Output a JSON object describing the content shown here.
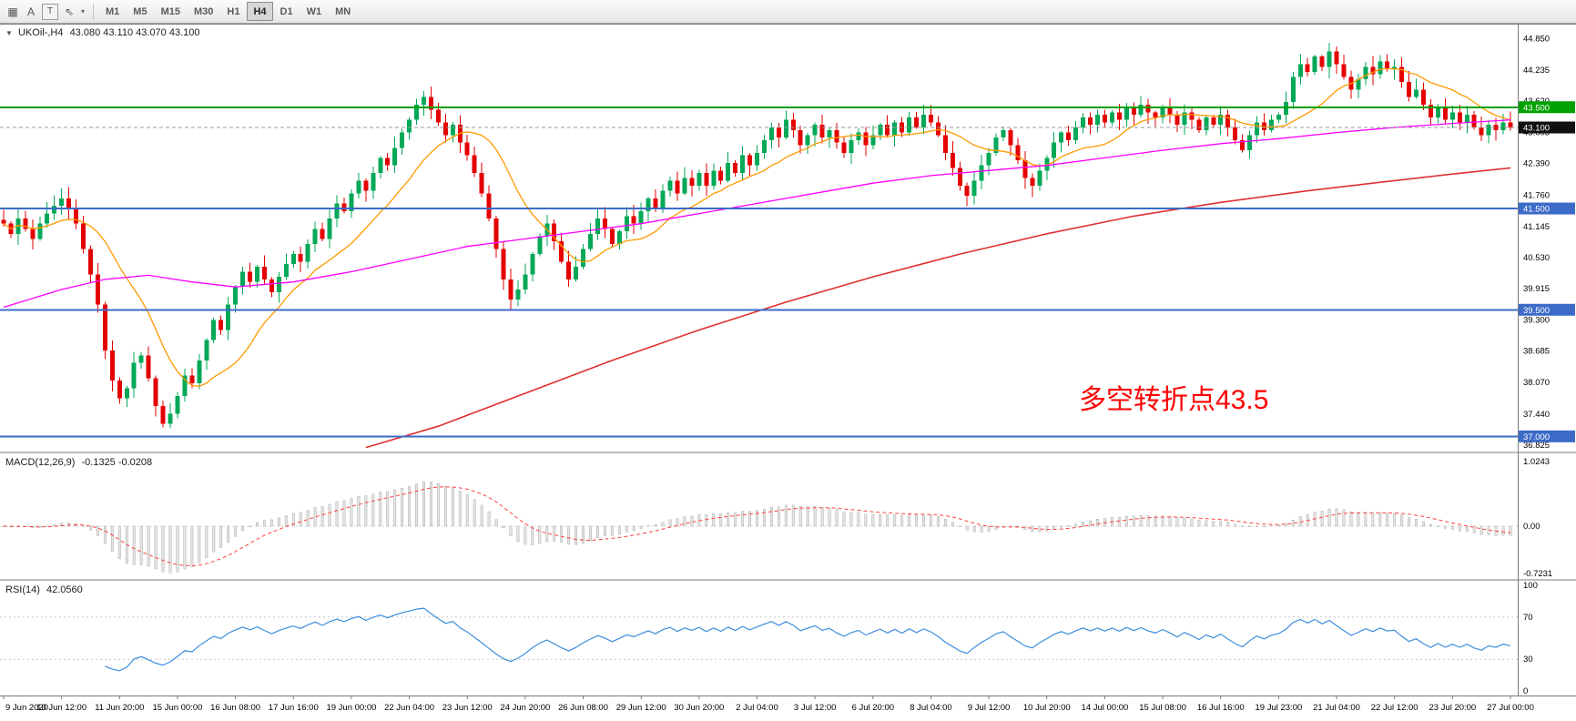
{
  "toolbar": {
    "icons": [
      {
        "name": "tile-windows-icon",
        "glyph": "▦",
        "boxed": false
      },
      {
        "name": "text-a-tool-icon",
        "glyph": "A",
        "boxed": false
      },
      {
        "name": "text-box-tool-icon",
        "glyph": "T",
        "boxed": true
      },
      {
        "name": "cursor-tool-icon",
        "glyph": "⇖",
        "boxed": false
      },
      {
        "name": "dropdown-chevron-icon",
        "glyph": "▾",
        "boxed": false,
        "small": true
      }
    ],
    "timeframes": [
      {
        "label": "M1",
        "active": false
      },
      {
        "label": "M5",
        "active": false
      },
      {
        "label": "M15",
        "active": false
      },
      {
        "label": "M30",
        "active": false
      },
      {
        "label": "H1",
        "active": false
      },
      {
        "label": "H4",
        "active": true
      },
      {
        "label": "D1",
        "active": false
      },
      {
        "label": "W1",
        "active": false
      },
      {
        "label": "MN",
        "active": false
      }
    ]
  },
  "header": {
    "collapse_icon": "▼",
    "symbol_period": "UKOil-,H4",
    "ohlc": "43.080 43.110 43.070 43.100"
  },
  "macd_panel": {
    "title": "MACD(12,26,9)",
    "values": "-0.1325 -0.0208"
  },
  "rsi_panel": {
    "title": "RSI(14)",
    "value": "42.0560"
  },
  "chart_data": {
    "type": "candlestick",
    "symbol": "UKOil-",
    "timeframe": "H4",
    "last_ohlc": {
      "open": 43.08,
      "high": 43.11,
      "low": 43.07,
      "close": 43.1
    },
    "price_range": [
      36.7,
      45.15
    ],
    "candle_up_color": "#00A857",
    "candle_down_color": "#E50000",
    "closes": [
      41.2,
      41.0,
      41.3,
      41.1,
      40.9,
      41.2,
      41.4,
      41.55,
      41.7,
      41.5,
      41.2,
      40.7,
      40.2,
      39.6,
      38.7,
      38.1,
      37.75,
      37.95,
      38.45,
      38.6,
      38.15,
      37.6,
      37.25,
      37.45,
      37.8,
      38.2,
      38.05,
      38.5,
      38.9,
      39.3,
      39.1,
      39.6,
      39.95,
      40.25,
      40.05,
      40.35,
      40.1,
      39.85,
      40.15,
      40.4,
      40.6,
      40.45,
      40.8,
      41.1,
      40.9,
      41.3,
      41.6,
      41.45,
      41.8,
      42.05,
      41.85,
      42.2,
      42.5,
      42.35,
      42.7,
      43.0,
      43.25,
      43.55,
      43.7,
      43.45,
      43.2,
      42.95,
      43.15,
      42.8,
      42.55,
      42.2,
      41.8,
      41.3,
      40.7,
      40.1,
      39.7,
      39.9,
      40.2,
      40.6,
      40.95,
      41.2,
      40.85,
      40.45,
      40.1,
      40.35,
      40.7,
      41.0,
      41.3,
      41.1,
      40.8,
      41.05,
      41.35,
      41.2,
      41.45,
      41.7,
      41.5,
      41.85,
      42.05,
      41.8,
      42.1,
      41.95,
      42.2,
      41.95,
      42.25,
      42.05,
      42.4,
      42.2,
      42.55,
      42.35,
      42.6,
      42.85,
      43.1,
      42.9,
      43.25,
      43.05,
      42.75,
      42.95,
      43.15,
      42.9,
      43.05,
      42.8,
      42.6,
      42.85,
      43.0,
      42.75,
      42.95,
      43.15,
      42.95,
      43.2,
      43.0,
      43.3,
      43.1,
      43.35,
      43.2,
      42.95,
      42.6,
      42.3,
      41.95,
      41.75,
      42.05,
      42.35,
      42.6,
      42.9,
      43.05,
      42.75,
      42.45,
      42.1,
      41.95,
      42.25,
      42.5,
      42.8,
      43.0,
      42.85,
      43.1,
      43.3,
      43.15,
      43.35,
      43.2,
      43.4,
      43.25,
      43.5,
      43.35,
      43.55,
      43.4,
      43.3,
      43.5,
      43.35,
      43.15,
      43.4,
      43.25,
      43.05,
      43.3,
      43.15,
      43.35,
      43.1,
      42.85,
      42.65,
      42.95,
      43.2,
      43.05,
      43.25,
      43.35,
      43.6,
      44.1,
      44.35,
      44.2,
      44.5,
      44.3,
      44.6,
      44.35,
      44.1,
      43.85,
      44.05,
      44.3,
      44.15,
      44.4,
      44.25,
      44.3,
      44.0,
      43.7,
      43.85,
      43.55,
      43.3,
      43.5,
      43.25,
      43.4,
      43.2,
      43.35,
      43.1,
      42.95,
      43.15,
      43.05,
      43.2,
      43.1
    ],
    "label_every": 8,
    "x_labels": [
      "9 Jun 2020",
      "10 Jun 12:00",
      "11 Jun 20:00",
      "15 Jun 00:00",
      "16 Jun 08:00",
      "17 Jun 16:00",
      "19 Jun 00:00",
      "22 Jun 04:00",
      "23 Jun 12:00",
      "24 Jun 20:00",
      "26 Jun 08:00",
      "29 Jun 12:00",
      "30 Jun 20:00",
      "2 Jul 04:00",
      "3 Jul 12:00",
      "6 Jul 20:00",
      "8 Jul 04:00",
      "9 Jul 12:00",
      "10 Jul 20:00",
      "14 Jul 00:00",
      "15 Jul 08:00",
      "16 Jul 16:00",
      "19 Jul 23:00",
      "21 Jul 04:00",
      "22 Jul 12:00",
      "23 Jul 20:00",
      "27 Jul 00:00"
    ],
    "price_axis_labels": [
      "44.850",
      "44.235",
      "43.620",
      "43.005",
      "42.390",
      "41.760",
      "41.145",
      "40.530",
      "39.915",
      "39.300",
      "38.685",
      "38.070",
      "37.440",
      "36.825"
    ],
    "moving_averages": {
      "fast": {
        "period": 13,
        "color": "#FF9900"
      },
      "mid": {
        "color": "#FF00FF",
        "points": [
          [
            0,
            39.55
          ],
          [
            8,
            39.9
          ],
          [
            14,
            40.1
          ],
          [
            20,
            40.18
          ],
          [
            26,
            40.05
          ],
          [
            32,
            39.95
          ],
          [
            40,
            40.05
          ],
          [
            48,
            40.25
          ],
          [
            56,
            40.5
          ],
          [
            64,
            40.75
          ],
          [
            72,
            40.9
          ],
          [
            80,
            41.05
          ],
          [
            88,
            41.2
          ],
          [
            96,
            41.4
          ],
          [
            104,
            41.6
          ],
          [
            112,
            41.8
          ],
          [
            120,
            42.0
          ],
          [
            128,
            42.15
          ],
          [
            136,
            42.25
          ],
          [
            144,
            42.35
          ],
          [
            152,
            42.5
          ],
          [
            160,
            42.65
          ],
          [
            168,
            42.78
          ],
          [
            176,
            42.88
          ],
          [
            184,
            43.0
          ],
          [
            192,
            43.1
          ],
          [
            200,
            43.18
          ],
          [
            208,
            43.25
          ]
        ]
      },
      "slow": {
        "color": "#E03030",
        "points": [
          [
            50,
            36.78
          ],
          [
            60,
            37.2
          ],
          [
            72,
            37.85
          ],
          [
            84,
            38.5
          ],
          [
            96,
            39.1
          ],
          [
            108,
            39.65
          ],
          [
            120,
            40.15
          ],
          [
            132,
            40.6
          ],
          [
            144,
            41.0
          ],
          [
            156,
            41.35
          ],
          [
            168,
            41.62
          ],
          [
            180,
            41.85
          ],
          [
            192,
            42.05
          ],
          [
            200,
            42.18
          ],
          [
            208,
            42.3
          ]
        ]
      }
    },
    "hlines": [
      {
        "price": 43.5,
        "color": "#00A000",
        "width": 2,
        "label": "43.500"
      },
      {
        "price": 41.5,
        "color": "#3C6BC8",
        "width": 2,
        "label": "41.500"
      },
      {
        "price": 39.5,
        "color": "#3C6BC8",
        "width": 2,
        "label": "39.500"
      },
      {
        "price": 37.0,
        "color": "#3C6BC8",
        "width": 2,
        "label": "37.000"
      }
    ],
    "current_price": {
      "price": 43.1,
      "label": "43.100",
      "tag_color": "#111111"
    },
    "macd": {
      "params": "12,26,9",
      "values_text": "-0.1325 -0.0208",
      "axis": [
        "1.0243",
        "0.00",
        "-0.7231"
      ],
      "hist_fill": "#E4E4E4",
      "hist_stroke": "#ACACAC",
      "signal_color": "#FF4040"
    },
    "rsi": {
      "period": 14,
      "value_text": "42.0560",
      "axis": [
        "100",
        "70",
        "30",
        "0"
      ],
      "levels": [
        70,
        30
      ],
      "line_color": "#3E8EDE"
    },
    "annotation": {
      "text": "多空转折点43.5",
      "color": "#FF0000"
    }
  }
}
